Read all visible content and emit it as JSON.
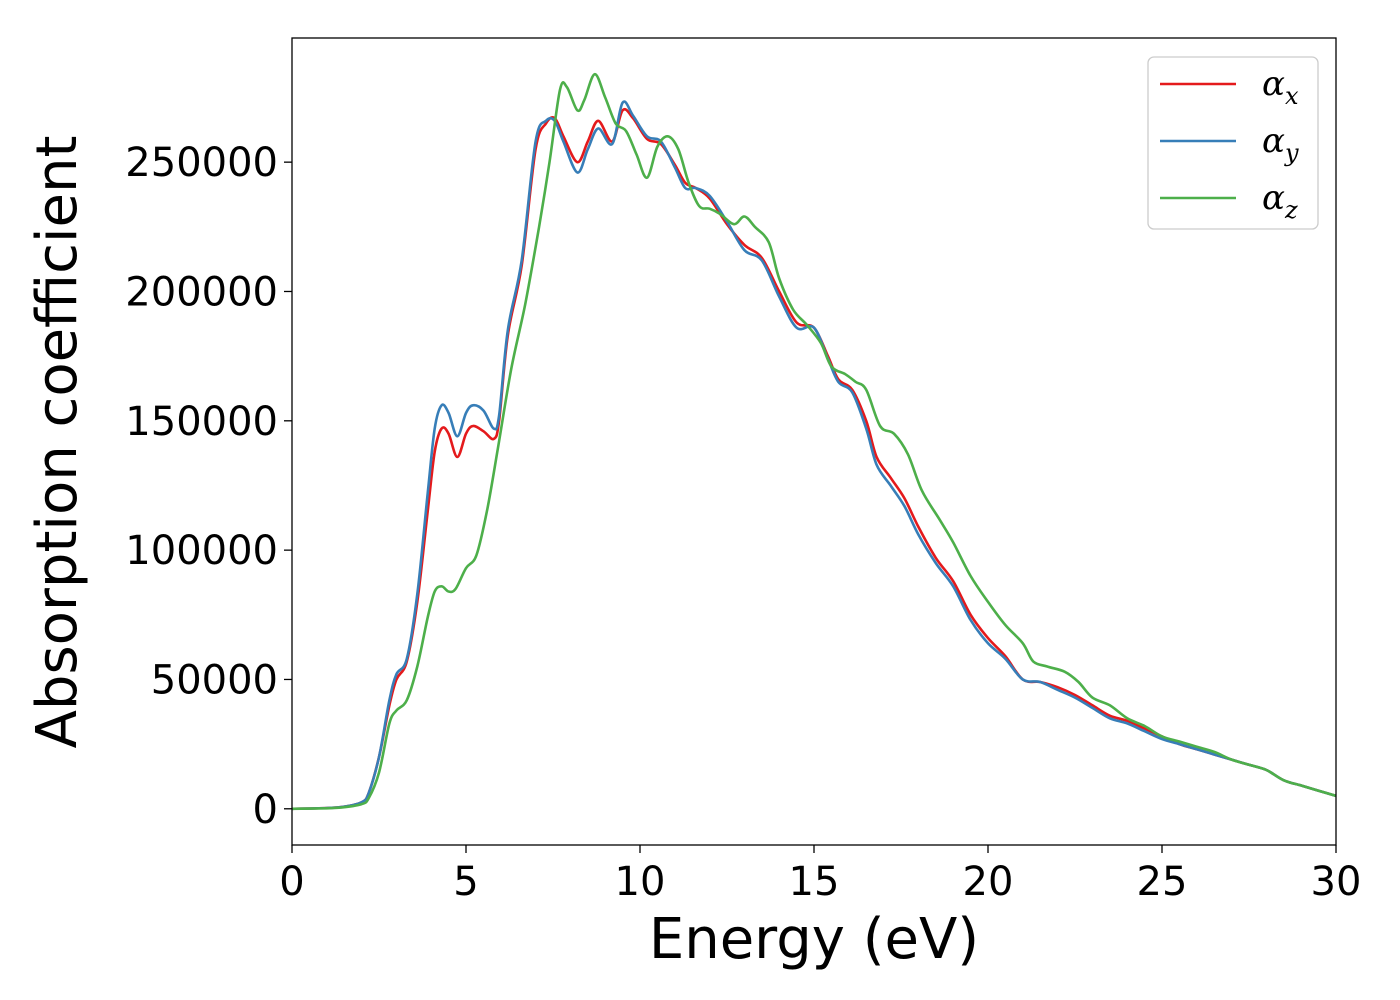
{
  "chart_data": {
    "type": "line",
    "xlabel": "Energy (eV)",
    "ylabel": "Absorption coefficient",
    "xlim": [
      0,
      30
    ],
    "ylim": [
      -14000,
      298000
    ],
    "xticks": [
      "0",
      "5",
      "10",
      "15",
      "20",
      "25",
      "30"
    ],
    "yticks": [
      "0",
      "50000",
      "100000",
      "150000",
      "200000",
      "250000"
    ],
    "grid": false,
    "legend_position": "top-right",
    "series": [
      {
        "name": "α",
        "name_sub": "x",
        "color": "#e41a1c",
        "points": [
          [
            0,
            0
          ],
          [
            1,
            300
          ],
          [
            1.5,
            800
          ],
          [
            2,
            2500
          ],
          [
            2.2,
            6000
          ],
          [
            2.5,
            20000
          ],
          [
            2.8,
            40000
          ],
          [
            3,
            50000
          ],
          [
            3.3,
            57000
          ],
          [
            3.6,
            80000
          ],
          [
            3.9,
            115000
          ],
          [
            4.1,
            138000
          ],
          [
            4.3,
            147000
          ],
          [
            4.5,
            145000
          ],
          [
            4.75,
            136000
          ],
          [
            5,
            145000
          ],
          [
            5.2,
            148000
          ],
          [
            5.5,
            146000
          ],
          [
            5.8,
            143000
          ],
          [
            5.95,
            150000
          ],
          [
            6.2,
            183000
          ],
          [
            6.6,
            210000
          ],
          [
            7,
            255000
          ],
          [
            7.3,
            265000
          ],
          [
            7.55,
            267000
          ],
          [
            7.8,
            260000
          ],
          [
            8.2,
            250000
          ],
          [
            8.5,
            258000
          ],
          [
            8.8,
            266000
          ],
          [
            9.2,
            258000
          ],
          [
            9.5,
            270000
          ],
          [
            9.8,
            267000
          ],
          [
            10.2,
            259000
          ],
          [
            10.6,
            257000
          ],
          [
            11,
            249000
          ],
          [
            11.3,
            242000
          ],
          [
            11.6,
            240000
          ],
          [
            12,
            236000
          ],
          [
            12.5,
            226000
          ],
          [
            13,
            218000
          ],
          [
            13.5,
            213000
          ],
          [
            14,
            200000
          ],
          [
            14.5,
            188000
          ],
          [
            15,
            186000
          ],
          [
            15.4,
            175000
          ],
          [
            15.7,
            166000
          ],
          [
            16.1,
            162000
          ],
          [
            16.5,
            150000
          ],
          [
            16.8,
            136000
          ],
          [
            17.2,
            128000
          ],
          [
            17.6,
            120000
          ],
          [
            18,
            109000
          ],
          [
            18.5,
            97000
          ],
          [
            19,
            88000
          ],
          [
            19.5,
            75000
          ],
          [
            20,
            66000
          ],
          [
            20.5,
            59000
          ],
          [
            21,
            50000
          ],
          [
            21.5,
            49000
          ],
          [
            22,
            47000
          ],
          [
            22.5,
            44000
          ],
          [
            23,
            40000
          ],
          [
            23.5,
            36000
          ],
          [
            24,
            34000
          ],
          [
            24.5,
            31000
          ],
          [
            25,
            28000
          ],
          [
            25.5,
            25000
          ],
          [
            26,
            23000
          ],
          [
            26.5,
            21000
          ],
          [
            27,
            19000
          ],
          [
            27.5,
            17000
          ],
          [
            28,
            15000
          ],
          [
            28.5,
            11000
          ],
          [
            29,
            9000
          ],
          [
            29.5,
            7000
          ],
          [
            30,
            5000
          ]
        ]
      },
      {
        "name": "α",
        "name_sub": "y",
        "color": "#377eb8",
        "points": [
          [
            0,
            0
          ],
          [
            1,
            300
          ],
          [
            1.5,
            800
          ],
          [
            2,
            2500
          ],
          [
            2.2,
            6000
          ],
          [
            2.5,
            20000
          ],
          [
            2.8,
            42000
          ],
          [
            3,
            52000
          ],
          [
            3.3,
            58000
          ],
          [
            3.6,
            83000
          ],
          [
            3.9,
            122000
          ],
          [
            4.1,
            147000
          ],
          [
            4.3,
            156000
          ],
          [
            4.5,
            153000
          ],
          [
            4.75,
            144000
          ],
          [
            5,
            153000
          ],
          [
            5.2,
            156000
          ],
          [
            5.5,
            154000
          ],
          [
            5.8,
            147000
          ],
          [
            5.95,
            152000
          ],
          [
            6.2,
            185000
          ],
          [
            6.6,
            212000
          ],
          [
            7,
            258000
          ],
          [
            7.3,
            266000
          ],
          [
            7.55,
            266000
          ],
          [
            7.8,
            258000
          ],
          [
            8.2,
            246000
          ],
          [
            8.5,
            255000
          ],
          [
            8.8,
            263000
          ],
          [
            9.2,
            257000
          ],
          [
            9.5,
            273000
          ],
          [
            9.8,
            268000
          ],
          [
            10.2,
            260000
          ],
          [
            10.6,
            258000
          ],
          [
            11,
            248000
          ],
          [
            11.3,
            240000
          ],
          [
            11.6,
            240000
          ],
          [
            12,
            237000
          ],
          [
            12.5,
            227000
          ],
          [
            13,
            216000
          ],
          [
            13.5,
            212000
          ],
          [
            14,
            198000
          ],
          [
            14.5,
            186000
          ],
          [
            15,
            186000
          ],
          [
            15.4,
            174000
          ],
          [
            15.7,
            165000
          ],
          [
            16.1,
            161000
          ],
          [
            16.5,
            147000
          ],
          [
            16.8,
            133000
          ],
          [
            17.2,
            125000
          ],
          [
            17.6,
            117000
          ],
          [
            18,
            106000
          ],
          [
            18.5,
            95000
          ],
          [
            19,
            86000
          ],
          [
            19.5,
            73000
          ],
          [
            20,
            64000
          ],
          [
            20.5,
            58000
          ],
          [
            21,
            50000
          ],
          [
            21.5,
            49000
          ],
          [
            22,
            46000
          ],
          [
            22.5,
            43000
          ],
          [
            23,
            39000
          ],
          [
            23.5,
            35000
          ],
          [
            24,
            33000
          ],
          [
            24.5,
            30000
          ],
          [
            25,
            27000
          ],
          [
            25.5,
            25000
          ],
          [
            26,
            23000
          ],
          [
            26.5,
            21000
          ],
          [
            27,
            19000
          ],
          [
            27.5,
            17000
          ],
          [
            28,
            15000
          ],
          [
            28.5,
            11000
          ],
          [
            29,
            9000
          ],
          [
            29.5,
            7000
          ],
          [
            30,
            5000
          ]
        ]
      },
      {
        "name": "α",
        "name_sub": "z",
        "color": "#4daf4a",
        "points": [
          [
            0,
            0
          ],
          [
            1,
            200
          ],
          [
            1.5,
            600
          ],
          [
            2,
            1800
          ],
          [
            2.2,
            4000
          ],
          [
            2.5,
            14000
          ],
          [
            2.8,
            33000
          ],
          [
            3,
            38000
          ],
          [
            3.3,
            42000
          ],
          [
            3.6,
            55000
          ],
          [
            3.9,
            74000
          ],
          [
            4.1,
            84000
          ],
          [
            4.3,
            86000
          ],
          [
            4.5,
            84000
          ],
          [
            4.7,
            85000
          ],
          [
            5,
            93000
          ],
          [
            5.3,
            98000
          ],
          [
            5.6,
            115000
          ],
          [
            5.9,
            138000
          ],
          [
            6.3,
            170000
          ],
          [
            6.7,
            195000
          ],
          [
            7.1,
            225000
          ],
          [
            7.4,
            250000
          ],
          [
            7.7,
            278000
          ],
          [
            7.9,
            279000
          ],
          [
            8.2,
            270000
          ],
          [
            8.4,
            274000
          ],
          [
            8.7,
            284000
          ],
          [
            9,
            275000
          ],
          [
            9.3,
            265000
          ],
          [
            9.6,
            262000
          ],
          [
            9.9,
            253000
          ],
          [
            10.2,
            244000
          ],
          [
            10.5,
            256000
          ],
          [
            10.8,
            260000
          ],
          [
            11.1,
            255000
          ],
          [
            11.4,
            242000
          ],
          [
            11.7,
            233000
          ],
          [
            12,
            232000
          ],
          [
            12.3,
            230000
          ],
          [
            12.7,
            226000
          ],
          [
            13,
            229000
          ],
          [
            13.3,
            225000
          ],
          [
            13.7,
            219000
          ],
          [
            14,
            205000
          ],
          [
            14.4,
            193000
          ],
          [
            14.8,
            187000
          ],
          [
            15.2,
            180000
          ],
          [
            15.5,
            171000
          ],
          [
            15.9,
            168000
          ],
          [
            16.2,
            165000
          ],
          [
            16.5,
            162000
          ],
          [
            16.9,
            148000
          ],
          [
            17.3,
            145000
          ],
          [
            17.7,
            137000
          ],
          [
            18.1,
            123000
          ],
          [
            18.6,
            112000
          ],
          [
            19,
            103000
          ],
          [
            19.5,
            90000
          ],
          [
            20,
            80000
          ],
          [
            20.5,
            71000
          ],
          [
            21,
            64000
          ],
          [
            21.3,
            57000
          ],
          [
            21.7,
            55000
          ],
          [
            22.2,
            53000
          ],
          [
            22.6,
            49000
          ],
          [
            23,
            43000
          ],
          [
            23.5,
            40000
          ],
          [
            24,
            35000
          ],
          [
            24.5,
            32000
          ],
          [
            25,
            28000
          ],
          [
            25.5,
            26000
          ],
          [
            26,
            24000
          ],
          [
            26.5,
            22000
          ],
          [
            27,
            19000
          ],
          [
            27.5,
            17000
          ],
          [
            28,
            15000
          ],
          [
            28.5,
            11000
          ],
          [
            29,
            9000
          ],
          [
            29.5,
            7000
          ],
          [
            30,
            5000
          ]
        ]
      }
    ]
  }
}
